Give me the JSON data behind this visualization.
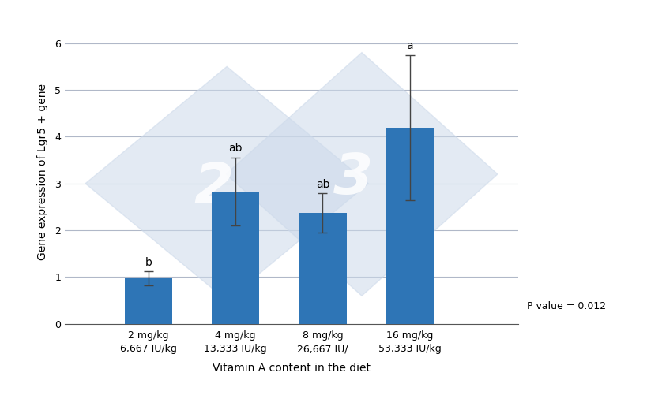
{
  "categories": [
    "2 mg/kg\n6,667 IU/kg",
    "4 mg/kg\n13,333 IU/kg",
    "8 mg/kg\n26,667 IU/",
    "16 mg/kg\n53,333 IU/kg"
  ],
  "values": [
    0.97,
    2.83,
    2.37,
    4.2
  ],
  "errors": [
    0.15,
    0.73,
    0.42,
    1.55
  ],
  "letters": [
    "b",
    "ab",
    "ab",
    "a"
  ],
  "bar_color": "#2E75B6",
  "ylabel": "Gene expression of Lgr5 + gene",
  "xlabel": "Vitamin A content in the diet",
  "ylim": [
    0,
    6.5
  ],
  "yticks": [
    0,
    1,
    2,
    3,
    4,
    5,
    6
  ],
  "p_value_text": "P value = 0.012",
  "background_color": "#ffffff",
  "grid_color": "#b0b8c8",
  "diamond_color": "#ccd9ea",
  "diamond_alpha": 0.55,
  "watermark_num_color": "#ffffff",
  "watermark_num_alpha": 0.85
}
